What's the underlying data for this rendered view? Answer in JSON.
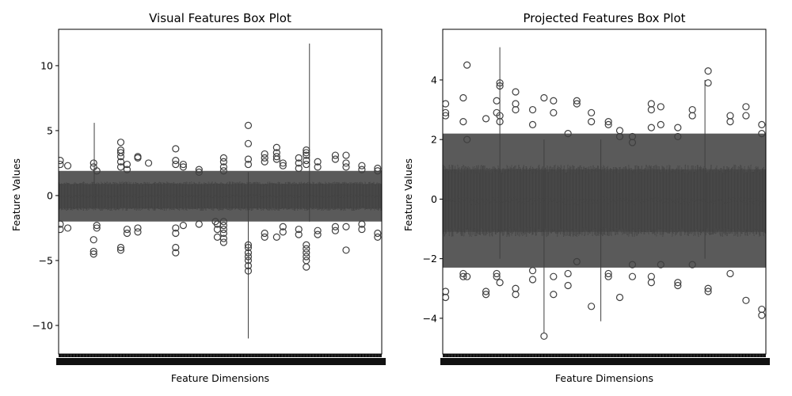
{
  "chart_data": [
    {
      "type": "box",
      "title": "Visual Features Box Plot",
      "xlabel": "Feature Dimensions",
      "ylabel": "Feature Values",
      "ylim": [
        -12.2,
        12.8
      ],
      "yticks": [
        -10,
        -5,
        0,
        5,
        10
      ],
      "ytick_labels": [
        "−10",
        "−5",
        "0",
        "5",
        "10"
      ],
      "n_dimensions": 512,
      "box_color": "#808080",
      "edge_color": "#3f3f3f",
      "box_range": [
        -1.0,
        0.9
      ],
      "whisker_range": [
        -2.0,
        1.9
      ],
      "outliers": [
        {
          "dim": 2,
          "values": [
            2.7,
            2.4,
            -2.2,
            -2.6
          ]
        },
        {
          "dim": 14,
          "values": [
            2.3,
            -2.5
          ]
        },
        {
          "dim": 55,
          "values": [
            -3.4,
            -4.3,
            -4.5,
            2.5,
            2.2
          ]
        },
        {
          "dim": 60,
          "values": [
            -2.3,
            -2.5,
            1.9
          ]
        },
        {
          "dim": 98,
          "values": [
            4.1,
            3.5,
            3.3,
            3.0,
            2.6,
            2.2,
            -4.0,
            -4.2
          ]
        },
        {
          "dim": 108,
          "values": [
            -2.6,
            -2.9,
            2.4,
            2.0
          ]
        },
        {
          "dim": 125,
          "values": [
            -2.5,
            -2.8,
            3.0,
            2.9
          ]
        },
        {
          "dim": 142,
          "values": [
            2.5
          ]
        },
        {
          "dim": 185,
          "values": [
            -4.0,
            -4.4,
            3.6,
            2.7,
            2.4,
            -2.5,
            -2.9
          ]
        },
        {
          "dim": 197,
          "values": [
            2.4,
            2.2,
            -2.3
          ]
        },
        {
          "dim": 222,
          "values": [
            2.0,
            1.8,
            -2.2
          ]
        },
        {
          "dim": 248,
          "values": [
            -2.0
          ]
        },
        {
          "dim": 251,
          "values": [
            -2.2,
            -2.6,
            -3.2
          ]
        },
        {
          "dim": 261,
          "values": [
            2.9,
            2.6,
            2.2,
            1.9,
            -2.0,
            -2.3,
            -2.6,
            -2.9,
            -3.3,
            -3.6
          ]
        },
        {
          "dim": 300,
          "values": [
            5.4,
            4.0,
            2.8,
            2.4,
            -3.8,
            -4.0,
            -4.4,
            -4.7,
            -5.0,
            -5.4,
            -5.8
          ]
        },
        {
          "dim": 326,
          "values": [
            3.2,
            2.9,
            2.6,
            -2.9,
            -3.2
          ]
        },
        {
          "dim": 345,
          "values": [
            3.7,
            3.3,
            3.0,
            2.8,
            -3.2
          ]
        },
        {
          "dim": 355,
          "values": [
            2.5,
            2.3,
            -2.4,
            -2.8
          ]
        },
        {
          "dim": 380,
          "values": [
            2.9,
            2.5,
            2.1,
            -3.0,
            -2.6
          ]
        },
        {
          "dim": 392,
          "values": [
            3.5,
            3.3,
            3.1,
            2.7,
            2.4,
            -3.8,
            -4.1,
            -4.4,
            -4.7,
            -5.0,
            -5.5
          ]
        },
        {
          "dim": 410,
          "values": [
            2.6,
            2.2,
            -2.7,
            -3.0
          ]
        },
        {
          "dim": 438,
          "values": [
            3.1,
            2.8,
            -2.4,
            -2.7
          ]
        },
        {
          "dim": 455,
          "values": [
            3.1,
            2.5,
            2.2,
            -4.2,
            -2.4
          ]
        },
        {
          "dim": 480,
          "values": [
            2.3,
            2.0,
            -2.2,
            -2.6
          ]
        },
        {
          "dim": 505,
          "values": [
            2.1,
            1.9,
            -2.9,
            -3.2
          ]
        }
      ],
      "long_whiskers": [
        {
          "dim": 56,
          "low": -1.0,
          "high": 5.6
        },
        {
          "dim": 300,
          "low": -11.0,
          "high": 1.8
        },
        {
          "dim": 397,
          "low": -2.0,
          "high": 11.7
        }
      ]
    },
    {
      "type": "box",
      "title": "Projected Features Box Plot",
      "xlabel": "Feature Dimensions",
      "ylabel": "Feature Values",
      "ylim": [
        -5.2,
        5.7
      ],
      "yticks": [
        -4,
        -2,
        0,
        2,
        4
      ],
      "ytick_labels": [
        "−4",
        "−2",
        "0",
        "2",
        "4"
      ],
      "n_dimensions": 512,
      "box_color": "#808080",
      "edge_color": "#3f3f3f",
      "box_range": [
        -1.1,
        1.0
      ],
      "whisker_range": [
        -2.3,
        2.2
      ],
      "outliers": [
        {
          "dim": 4,
          "values": [
            3.2,
            2.9,
            2.8,
            -3.1,
            -3.3
          ]
        },
        {
          "dim": 32,
          "values": [
            3.4,
            2.6,
            -2.5,
            -2.6
          ]
        },
        {
          "dim": 38,
          "values": [
            4.5,
            2.0,
            -2.6
          ]
        },
        {
          "dim": 68,
          "values": [
            2.7,
            -3.1,
            -3.2
          ]
        },
        {
          "dim": 85,
          "values": [
            3.3,
            2.9,
            -2.5,
            -2.6
          ]
        },
        {
          "dim": 90,
          "values": [
            3.9,
            3.8,
            2.8,
            2.6,
            -2.8
          ]
        },
        {
          "dim": 115,
          "values": [
            3.6,
            3.2,
            3.0,
            -3.0,
            -3.2
          ]
        },
        {
          "dim": 142,
          "values": [
            3.0,
            2.5,
            -2.4,
            -2.7
          ]
        },
        {
          "dim": 160,
          "values": [
            -4.6,
            3.4
          ]
        },
        {
          "dim": 175,
          "values": [
            3.3,
            2.9,
            -2.6,
            -3.2
          ]
        },
        {
          "dim": 198,
          "values": [
            2.2,
            -2.9,
            -2.5
          ]
        },
        {
          "dim": 212,
          "values": [
            3.3,
            3.2,
            -2.1
          ]
        },
        {
          "dim": 235,
          "values": [
            2.9,
            2.6,
            -3.6
          ]
        },
        {
          "dim": 262,
          "values": [
            2.6,
            2.5,
            -2.5,
            -2.6
          ]
        },
        {
          "dim": 280,
          "values": [
            2.3,
            2.1,
            -3.3
          ]
        },
        {
          "dim": 300,
          "values": [
            2.1,
            1.9,
            -2.2,
            -2.6
          ]
        },
        {
          "dim": 330,
          "values": [
            3.2,
            3.0,
            2.4,
            -2.6,
            -2.8
          ]
        },
        {
          "dim": 345,
          "values": [
            3.1,
            2.5,
            -2.2
          ]
        },
        {
          "dim": 372,
          "values": [
            2.4,
            2.1,
            -2.8,
            -2.9
          ]
        },
        {
          "dim": 395,
          "values": [
            3.0,
            2.8,
            -2.2
          ]
        },
        {
          "dim": 420,
          "values": [
            4.3,
            3.9,
            -3.0,
            -3.1
          ]
        },
        {
          "dim": 455,
          "values": [
            2.8,
            2.6,
            -2.5
          ]
        },
        {
          "dim": 480,
          "values": [
            3.1,
            2.8,
            -3.4
          ]
        },
        {
          "dim": 505,
          "values": [
            2.5,
            2.2,
            -3.7,
            -3.9
          ]
        }
      ],
      "long_whiskers": [
        {
          "dim": 90,
          "low": -2.0,
          "high": 5.1
        },
        {
          "dim": 160,
          "low": -4.5,
          "high": 2.0
        },
        {
          "dim": 250,
          "low": -4.1,
          "high": 2.0
        },
        {
          "dim": 415,
          "low": -2.0,
          "high": 4.0
        }
      ]
    }
  ]
}
